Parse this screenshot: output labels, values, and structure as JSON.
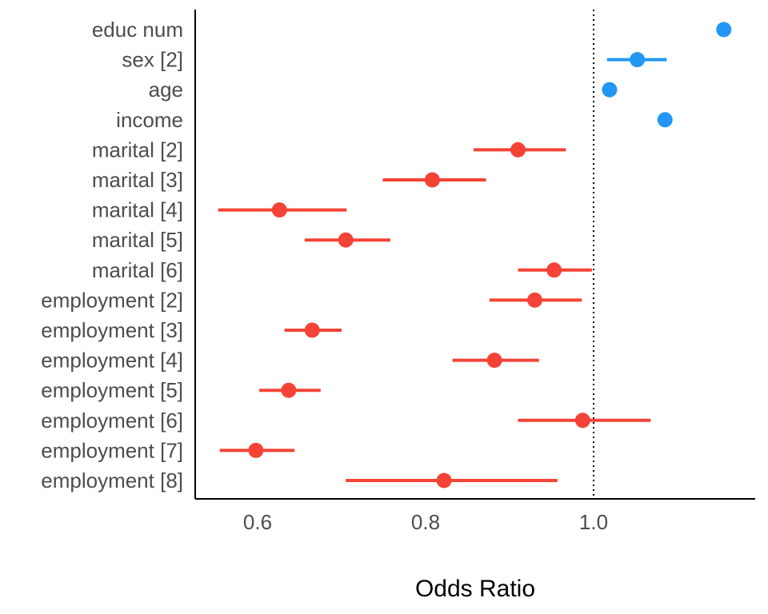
{
  "chart_data": {
    "type": "forest",
    "title": "",
    "xlabel": "Odds Ratio",
    "ylabel": "",
    "xlim": [
      0.52,
      1.2
    ],
    "xticks": [
      0.6,
      0.8,
      1.0
    ],
    "xtick_labels": [
      "0.6",
      "0.8",
      "1.0"
    ],
    "reference_line": 1.0,
    "grid": false,
    "legend": "none",
    "colors": {
      "positive": "#2196f3",
      "negative": "#f44336"
    },
    "terms": [
      {
        "label": "educ num",
        "estimate": 1.155,
        "lower": 1.155,
        "upper": 1.155,
        "direction": "positive"
      },
      {
        "label": "sex [2]",
        "estimate": 1.052,
        "lower": 1.016,
        "upper": 1.087,
        "direction": "positive"
      },
      {
        "label": "age",
        "estimate": 1.019,
        "lower": 1.019,
        "upper": 1.019,
        "direction": "positive"
      },
      {
        "label": "income",
        "estimate": 1.085,
        "lower": 1.085,
        "upper": 1.085,
        "direction": "positive"
      },
      {
        "label": "marital [2]",
        "estimate": 0.91,
        "lower": 0.857,
        "upper": 0.967,
        "direction": "negative"
      },
      {
        "label": "marital [3]",
        "estimate": 0.808,
        "lower": 0.749,
        "upper": 0.872,
        "direction": "negative"
      },
      {
        "label": "marital [4]",
        "estimate": 0.626,
        "lower": 0.553,
        "upper": 0.706,
        "direction": "negative"
      },
      {
        "label": "marital [5]",
        "estimate": 0.705,
        "lower": 0.656,
        "upper": 0.758,
        "direction": "negative"
      },
      {
        "label": "marital [6]",
        "estimate": 0.953,
        "lower": 0.91,
        "upper": 0.998,
        "direction": "negative"
      },
      {
        "label": "employment [2]",
        "estimate": 0.93,
        "lower": 0.876,
        "upper": 0.986,
        "direction": "negative"
      },
      {
        "label": "employment [3]",
        "estimate": 0.665,
        "lower": 0.632,
        "upper": 0.7,
        "direction": "negative"
      },
      {
        "label": "employment [4]",
        "estimate": 0.882,
        "lower": 0.832,
        "upper": 0.935,
        "direction": "negative"
      },
      {
        "label": "employment [5]",
        "estimate": 0.637,
        "lower": 0.602,
        "upper": 0.675,
        "direction": "negative"
      },
      {
        "label": "employment [6]",
        "estimate": 0.987,
        "lower": 0.91,
        "upper": 1.068,
        "direction": "negative"
      },
      {
        "label": "employment [7]",
        "estimate": 0.598,
        "lower": 0.555,
        "upper": 0.644,
        "direction": "negative"
      },
      {
        "label": "employment [8]",
        "estimate": 0.822,
        "lower": 0.705,
        "upper": 0.957,
        "direction": "negative"
      }
    ]
  }
}
